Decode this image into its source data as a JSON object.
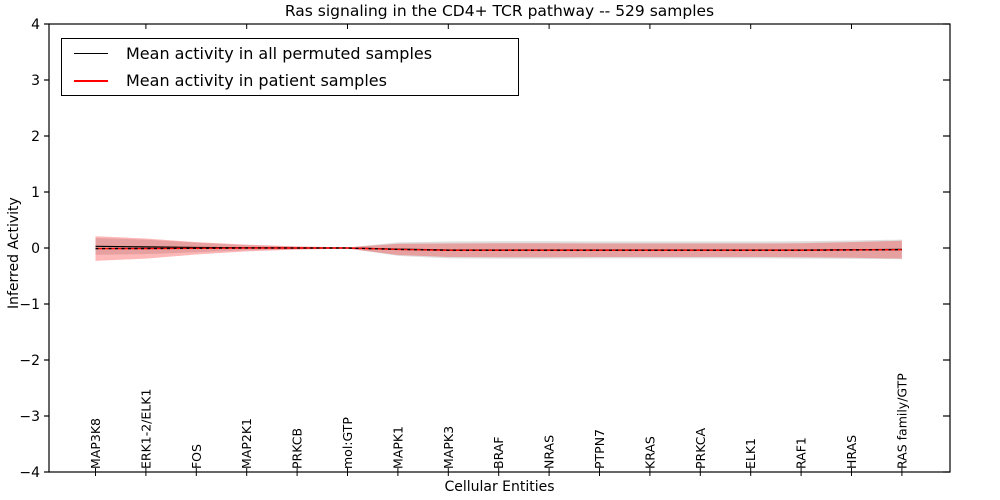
{
  "figure": {
    "background": "#ffffff"
  },
  "chart_data": {
    "type": "line",
    "title": "Ras signaling in the CD4+ TCR pathway -- 529 samples",
    "xlabel": "Cellular Entities",
    "ylabel": "Inferred Activity",
    "ylim": [
      -4,
      4
    ],
    "grid": false,
    "legend_position": "upper left",
    "yticks": [
      {
        "value": 4,
        "label": "4"
      },
      {
        "value": 3,
        "label": "3"
      },
      {
        "value": 2,
        "label": "2"
      },
      {
        "value": 1,
        "label": "1"
      },
      {
        "value": 0,
        "label": "0"
      },
      {
        "value": -1,
        "label": "−1"
      },
      {
        "value": -2,
        "label": "−2"
      },
      {
        "value": -3,
        "label": "−3"
      },
      {
        "value": -4,
        "label": "−4"
      }
    ],
    "categories": [
      "MAP3K8",
      "ERK1-2/ELK1",
      "FOS",
      "MAP2K1",
      "PRKCB",
      "mol:GTP",
      "MAPK1",
      "MAPK3",
      "BRAF",
      "NRAS",
      "PTPN7",
      "KRAS",
      "PRKCA",
      "ELK1",
      "RAF1",
      "HRAS",
      "RAS family/GTP"
    ],
    "series": [
      {
        "name": "Mean activity in all permuted samples",
        "color": "#000000",
        "band_color": "rgba(0,0,0,0.13)",
        "mean": [
          0.03,
          0.02,
          0.01,
          0.005,
          0.0,
          0.0,
          -0.02,
          -0.035,
          -0.035,
          -0.035,
          -0.035,
          -0.035,
          -0.035,
          -0.035,
          -0.035,
          -0.03,
          -0.025
        ],
        "std": [
          0.15,
          0.13,
          0.085,
          0.045,
          0.022,
          0.01,
          0.12,
          0.15,
          0.155,
          0.155,
          0.15,
          0.15,
          0.15,
          0.15,
          0.155,
          0.165,
          0.175
        ]
      },
      {
        "name": "Mean activity in patient samples",
        "color": "#ff0000",
        "band_color": "rgba(255,0,0,0.28)",
        "mean": [
          -0.01,
          -0.01,
          -0.005,
          0.0,
          0.0,
          0.0,
          -0.025,
          -0.04,
          -0.04,
          -0.04,
          -0.04,
          -0.04,
          -0.04,
          -0.04,
          -0.04,
          -0.035,
          -0.03
        ],
        "std": [
          0.22,
          0.18,
          0.11,
          0.06,
          0.03,
          0.012,
          0.1,
          0.12,
          0.125,
          0.125,
          0.12,
          0.12,
          0.12,
          0.12,
          0.125,
          0.14,
          0.16
        ]
      }
    ],
    "overlay_dashed_line": {
      "color": "#000000",
      "note": "black dashed reference drawn along patient mean near 0"
    }
  }
}
